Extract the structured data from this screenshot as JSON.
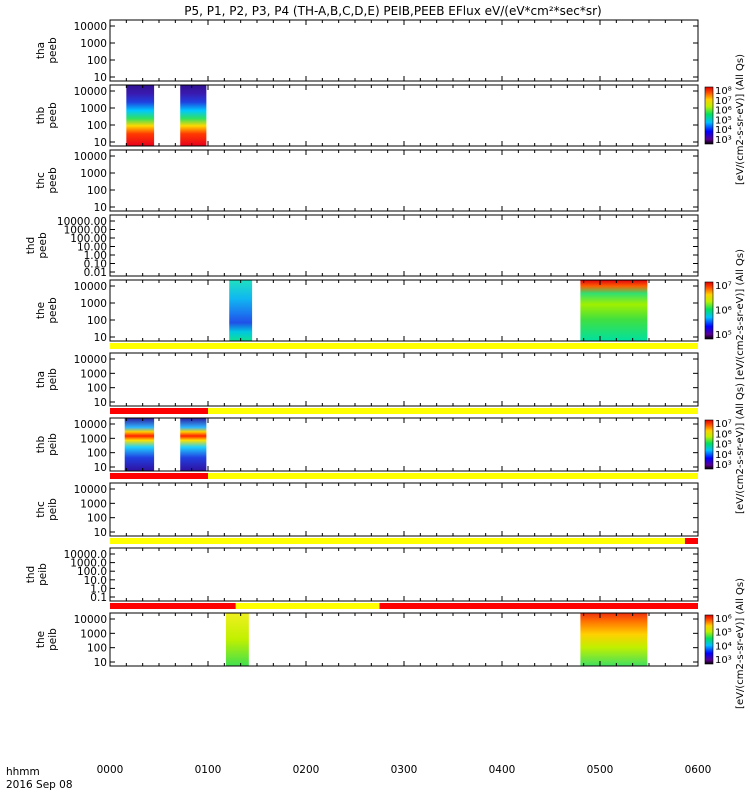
{
  "title": "P5, P1, P2, P3, P4 (TH-A,B,C,D,E) PEIB,PEEB EFlux eV/(eV*cm²*sec*sr)",
  "xaxis": {
    "ticks": [
      "0000",
      "0100",
      "0200",
      "0300",
      "0400",
      "0500",
      "0600"
    ],
    "label_line1": "hhmm",
    "label_line2": "2016 Sep 08"
  },
  "colors": {
    "yellow_bar": "#ffff00",
    "red_bar": "#ff0000"
  },
  "chart_data": {
    "type": "heatmap",
    "x_range_hours": [
      0,
      6
    ],
    "panels": [
      {
        "id": "tha-peeb",
        "ylabel": [
          "tha",
          "peeb"
        ],
        "yticks": [
          "10000",
          "1000",
          "100",
          "10"
        ],
        "yscale": "log",
        "blocks": []
      },
      {
        "id": "thb-peeb",
        "ylabel": [
          "thb",
          "peeb"
        ],
        "yticks": [
          "10000",
          "1000",
          "100",
          "10"
        ],
        "yscale": "log",
        "blocks": [
          {
            "x_start": "0010",
            "x_end": "0027",
            "palette": "bands"
          },
          {
            "x_start": "0043",
            "x_end": "0059",
            "palette": "bands"
          }
        ],
        "colorbar": {
          "label": "[eV/(cm2-s-sr-eV)] (All Qs)",
          "ticks": [
            "10⁸",
            "10⁷",
            "10⁶",
            "10⁵",
            "10⁴",
            "10³"
          ]
        }
      },
      {
        "id": "thc-peeb",
        "ylabel": [
          "thc",
          "peeb"
        ],
        "yticks": [
          "10000",
          "1000",
          "100",
          "10"
        ],
        "yscale": "log",
        "blocks": []
      },
      {
        "id": "thd-peeb",
        "ylabel": [
          "thd",
          "peeb"
        ],
        "yticks": [
          "10000.00",
          "1000.00",
          "100.00",
          "10.00",
          "1.00",
          "0.10",
          "0.01"
        ],
        "yscale": "log",
        "blocks": []
      },
      {
        "id": "the-peeb",
        "ylabel": [
          "the",
          "peeb"
        ],
        "yticks": [
          "10000",
          "1000",
          "100",
          "10"
        ],
        "yscale": "log",
        "blocks": [
          {
            "x_start": "0113",
            "x_end": "0127",
            "palette": "blue"
          },
          {
            "x_start": "0448",
            "x_end": "0529",
            "palette": "green_red"
          }
        ],
        "colorbar": {
          "label": "[eV/(cm2-s-sr-eV)] (All Qs)",
          "ticks": [
            "10⁷",
            "10⁶",
            "10⁵"
          ]
        }
      },
      {
        "id": "tha-peib",
        "ylabel": [
          "tha",
          "peib"
        ],
        "yticks": [
          "10000",
          "1000",
          "100",
          "10"
        ],
        "yscale": "log",
        "blocks": [],
        "bar": [
          {
            "x_start": "0000",
            "x_end": "0600",
            "color": "yellow"
          }
        ]
      },
      {
        "id": "thb-peib",
        "ylabel": [
          "thb",
          "peib"
        ],
        "yticks": [
          "10000",
          "1000",
          "100",
          "10"
        ],
        "yscale": "log",
        "blocks": [
          {
            "x_start": "0009",
            "x_end": "0027",
            "palette": "bands_noisy"
          },
          {
            "x_start": "0043",
            "x_end": "0059",
            "palette": "bands_noisy"
          }
        ],
        "bar": [
          {
            "x_start": "0000",
            "x_end": "0100",
            "color": "red"
          },
          {
            "x_start": "0100",
            "x_end": "0600",
            "color": "yellow"
          }
        ],
        "colorbar": {
          "label": "[eV/(cm2-s-sr-eV)] (All Qs)",
          "ticks": [
            "10⁷",
            "10⁶",
            "10⁵",
            "10⁴",
            "10³"
          ]
        }
      },
      {
        "id": "thc-peib",
        "ylabel": [
          "thc",
          "peib"
        ],
        "yticks": [
          "10000",
          "1000",
          "100",
          "10"
        ],
        "yscale": "log",
        "blocks": [],
        "bar": [
          {
            "x_start": "0000",
            "x_end": "0100",
            "color": "red"
          },
          {
            "x_start": "0100",
            "x_end": "0600",
            "color": "yellow"
          }
        ]
      },
      {
        "id": "thd-peib",
        "ylabel": [
          "thd",
          "peib"
        ],
        "yticks": [
          "10000.0",
          "1000.0",
          "100.0",
          "10.0",
          "1.0",
          "0.1"
        ],
        "yscale": "log",
        "blocks": [],
        "bar": [
          {
            "x_start": "0000",
            "x_end": "0552",
            "color": "yellow"
          },
          {
            "x_start": "0552",
            "x_end": "0600",
            "color": "red"
          }
        ]
      },
      {
        "id": "the-peib",
        "ylabel": [
          "the",
          "peib"
        ],
        "yticks": [
          "10000",
          "1000",
          "100",
          "10"
        ],
        "yscale": "log",
        "blocks": [
          {
            "x_start": "0111",
            "x_end": "0125",
            "palette": "green_yellow"
          },
          {
            "x_start": "0448",
            "x_end": "0529",
            "palette": "red_green"
          }
        ],
        "bar": [
          {
            "x_start": "0000",
            "x_end": "0117",
            "color": "red"
          },
          {
            "x_start": "0117",
            "x_end": "0245",
            "color": "yellow"
          },
          {
            "x_start": "0245",
            "x_end": "0600",
            "color": "red"
          }
        ],
        "colorbar": {
          "label": "[eV/(cm2-s-sr-eV)] (All Qs)",
          "ticks": [
            "10⁶",
            "10⁵",
            "10⁴",
            "10³"
          ]
        }
      }
    ]
  }
}
